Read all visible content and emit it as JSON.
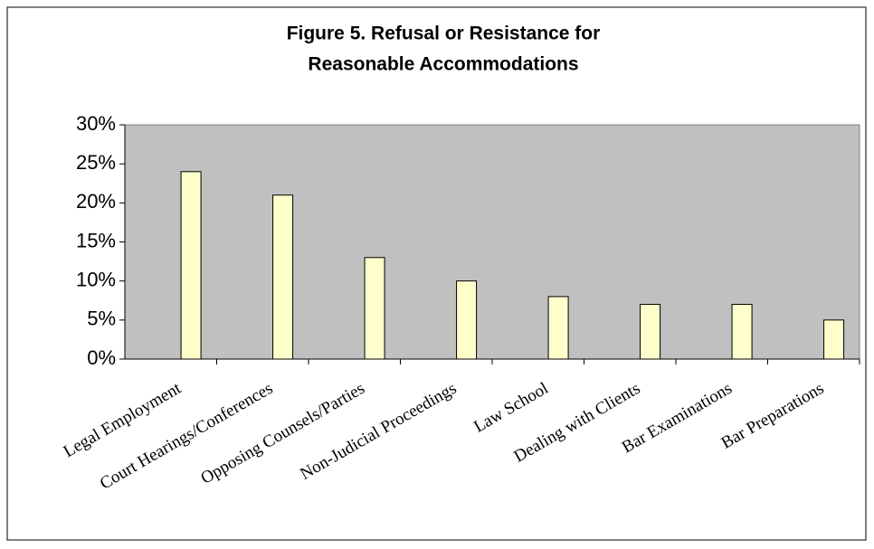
{
  "chart_data": {
    "type": "bar",
    "title": [
      "Figure 5.  Refusal or Resistance for",
      "Reasonable Accommodations"
    ],
    "categories": [
      "Legal Employment",
      "Court Hearings/Conferences",
      "Opposing Counsels/Parties",
      "Non-Judicial Proceedings",
      "Law School",
      "Dealing with Clients",
      "Bar Examinations",
      "Bar Preparations"
    ],
    "values": [
      24,
      21,
      13,
      10,
      8,
      7,
      7,
      5
    ],
    "color": "#ffffcc",
    "plot_background": "#c0c0c0",
    "ylim": [
      0,
      30
    ],
    "yticks": [
      {
        "value": 0,
        "label": "0%"
      },
      {
        "value": 5,
        "label": "5%"
      },
      {
        "value": 10,
        "label": "10%"
      },
      {
        "value": 15,
        "label": "15%"
      },
      {
        "value": 20,
        "label": "20%"
      },
      {
        "value": 25,
        "label": "25%"
      },
      {
        "value": 30,
        "label": "30%"
      }
    ],
    "grid": false
  }
}
